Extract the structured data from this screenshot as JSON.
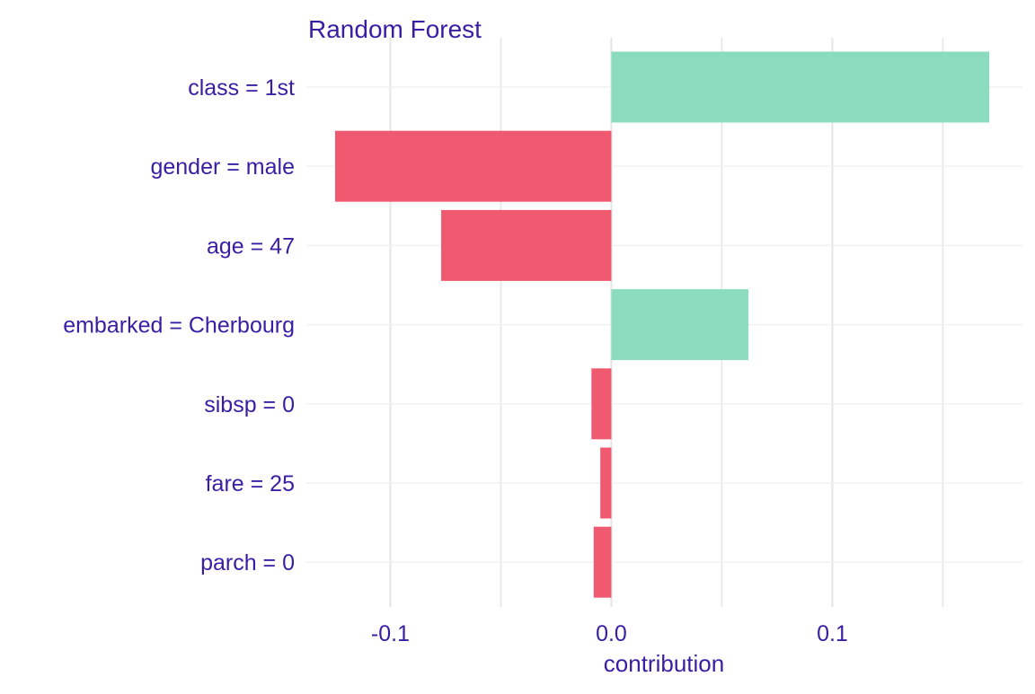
{
  "chart_data": {
    "type": "bar",
    "orientation": "horizontal",
    "title": "Random Forest",
    "xlabel": "contribution",
    "ylabel": "",
    "categories": [
      "class = 1st",
      "gender = male",
      "age = 47",
      "embarked = Cherbourg",
      "sibsp = 0",
      "fare = 25",
      "parch = 0"
    ],
    "values": [
      0.171,
      -0.125,
      -0.077,
      0.062,
      -0.009,
      -0.005,
      -0.008
    ],
    "xlim": [
      -0.138,
      0.186
    ],
    "xticks": [
      -0.1,
      0.0,
      0.1
    ],
    "xtick_labels": [
      "-0.1",
      "0.0",
      "0.1"
    ],
    "grid": true,
    "legend": "none",
    "colors": {
      "positive": "#8bdcbe",
      "negative": "#f05a71",
      "text": "#371ea3",
      "grid_major": "#e6e6e6",
      "grid_minor": "#f0f0f0"
    }
  }
}
